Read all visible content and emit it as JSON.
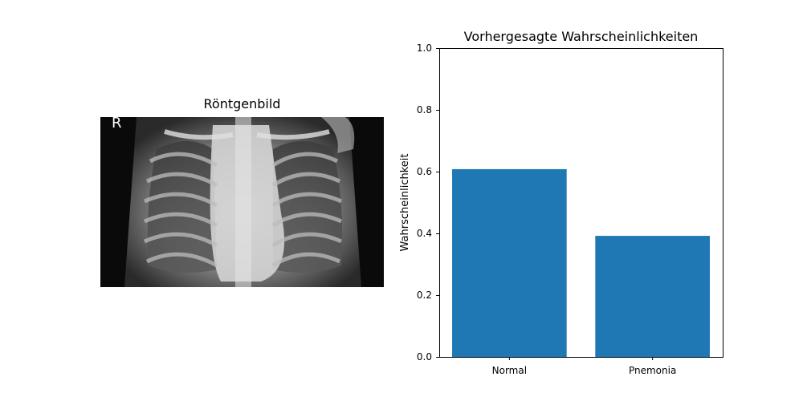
{
  "image_panel": {
    "title": "Röntgenbild",
    "marker_letter": "R"
  },
  "chart_data": {
    "type": "bar",
    "title": "Vorhergesagte Wahrscheinlichkeiten",
    "xlabel": "",
    "ylabel": "Wahrscheinlichkeit",
    "categories": [
      "Normal",
      "Pnemonia"
    ],
    "values": [
      0.608,
      0.392
    ],
    "ylim": [
      0,
      1
    ],
    "yticks": [
      0.0,
      0.2,
      0.4,
      0.6,
      0.8,
      1.0
    ],
    "ytick_labels": [
      "0.0",
      "0.2",
      "0.4",
      "0.6",
      "0.8",
      "1.0"
    ],
    "bar_color": "#1f77b4",
    "grid": false,
    "legend": "none"
  }
}
